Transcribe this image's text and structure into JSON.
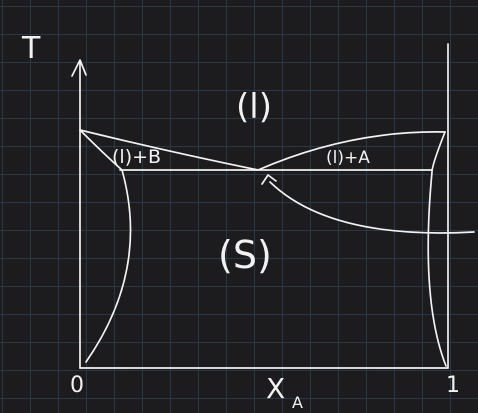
{
  "diagram": {
    "axes": {
      "y_label": "T",
      "x_label": "X",
      "x_label_subscript": "A",
      "x_min_label": "0",
      "x_max_label": "1"
    },
    "regions": {
      "liquid": "(l)",
      "liquid_plus_b": "(l)+B",
      "liquid_plus_a": "(l)+A",
      "solid": "(S)"
    },
    "colors": {
      "background": "#1c1c1e",
      "grid": "#26384a",
      "ink": "#f2f2f2"
    }
  }
}
